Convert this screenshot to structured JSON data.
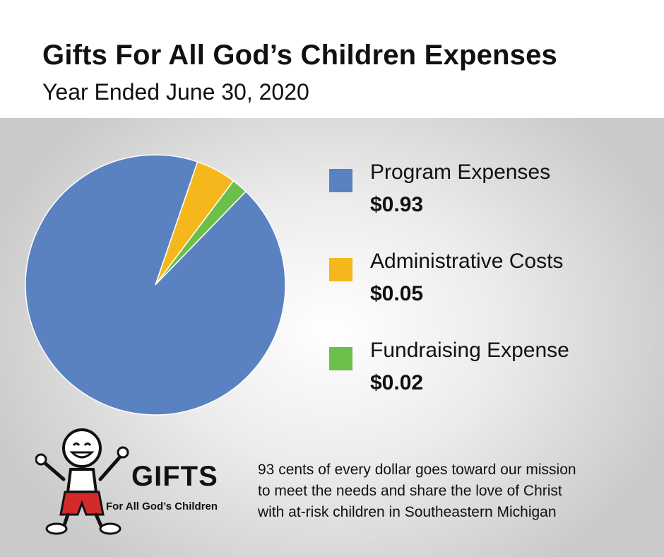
{
  "header": {
    "title": "Gifts For All God’s Children Expenses",
    "subtitle": "Year Ended June 30, 2020"
  },
  "chart_data": {
    "type": "pie",
    "title": "Gifts For All God’s Children Expenses",
    "subtitle": "Year Ended June 30, 2020",
    "legend_position": "right",
    "series": [
      {
        "name": "Program Expenses",
        "value": 0.93,
        "label": "$0.93",
        "color": "#5b82c0"
      },
      {
        "name": "Administrative Costs",
        "value": 0.05,
        "label": "$0.05",
        "color": "#f5b81c"
      },
      {
        "name": "Fundraising Expense",
        "value": 0.02,
        "label": "$0.02",
        "color": "#6cc04a"
      }
    ]
  },
  "mission": {
    "lines": [
      "93 cents of every dollar goes toward our mission",
      "to meet the needs and share the love of Christ",
      "with at-risk children in Southeastern Michigan"
    ]
  },
  "logo": {
    "word": "GIFTS",
    "tagline": "For All God’s Children",
    "icon": "smiling-child-logo-icon",
    "accent_color": "#d42a2a",
    "cross_color": "#2f57a8"
  }
}
